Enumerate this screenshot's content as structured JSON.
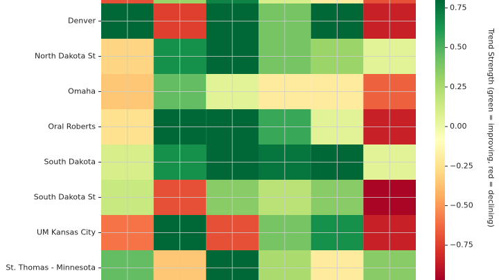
{
  "chart_data": {
    "type": "heatmap",
    "categories": [
      null,
      "Denver",
      "North Dakota St",
      "Omaha",
      "Oral Roberts",
      "South Dakota",
      "South Dakota St",
      "UM Kansas City",
      "St. Thomas - Minnesota"
    ],
    "values": [
      [
        -0.7,
        0.3,
        0.7,
        0.1,
        -0.2,
        -0.7
      ],
      [
        0.85,
        -0.75,
        0.9,
        0.4,
        0.8,
        -0.85
      ],
      [
        -0.3,
        0.65,
        0.9,
        0.4,
        0.3,
        0.05
      ],
      [
        -0.35,
        0.45,
        0.05,
        -0.2,
        -0.2,
        -0.65
      ],
      [
        -0.25,
        0.85,
        0.9,
        0.55,
        0.05,
        -0.85
      ],
      [
        0.1,
        0.65,
        0.85,
        0.75,
        0.95,
        0.05
      ],
      [
        0.15,
        -0.7,
        0.35,
        0.2,
        0.35,
        -0.95
      ],
      [
        -0.6,
        0.8,
        -0.7,
        0.4,
        0.65,
        -0.85
      ],
      [
        0.45,
        -0.35,
        0.9,
        0.25,
        -0.2,
        0.35
      ]
    ],
    "colorscale": [
      "#a50026",
      "#d73027",
      "#f46d43",
      "#fdae61",
      "#fee08b",
      "#ffffbf",
      "#d9ef8b",
      "#a6d96a",
      "#66bd63",
      "#1a9850",
      "#006837"
    ],
    "clim": [
      -0.97,
      0.8
    ],
    "cticks": [
      {
        "value": 0.75,
        "label": "0.75"
      },
      {
        "value": 0.5,
        "label": "0.50"
      },
      {
        "value": 0.25,
        "label": "0.25"
      },
      {
        "value": 0,
        "label": "0.00"
      },
      {
        "value": -0.25,
        "label": "−0.25"
      },
      {
        "value": -0.5,
        "label": "−0.50"
      },
      {
        "value": -0.75,
        "label": "−0.75"
      }
    ],
    "colorbar_label": "Trend Strength (green = improving, red = declining)",
    "grid": true
  }
}
